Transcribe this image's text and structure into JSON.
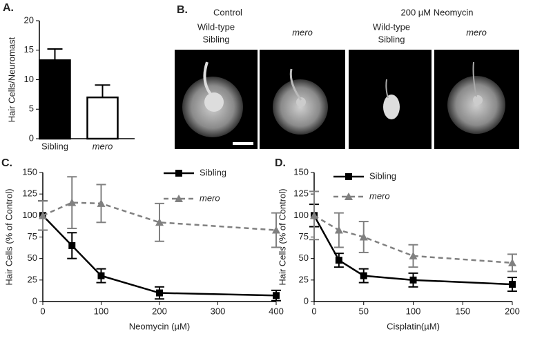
{
  "chart_data": [
    {
      "type": "bar",
      "panel": "A.",
      "ylabel": "Hair Cells/Neuromast",
      "categories": [
        "Sibling",
        "mero"
      ],
      "values": [
        13.3,
        7.0
      ],
      "errors": [
        1.9,
        2.1
      ],
      "colors": [
        "#000000",
        "#ffffff"
      ],
      "ylim": [
        0,
        20
      ],
      "yticks": [
        0,
        5,
        10,
        15,
        20
      ]
    },
    {
      "type": "line",
      "panel": "C.",
      "xlabel": "Neomycin (µM)",
      "ylabel": "Hair Cells (% of Control)",
      "x": [
        0,
        50,
        100,
        200,
        400
      ],
      "xlim": [
        0,
        400
      ],
      "xticks": [
        0,
        100,
        200,
        300,
        400
      ],
      "ylim": [
        0,
        150
      ],
      "yticks": [
        0,
        25,
        50,
        75,
        100,
        125,
        150
      ],
      "series": [
        {
          "name": "Sibling",
          "color": "#000000",
          "marker": "square",
          "line_style": "solid",
          "values": [
            100,
            65,
            30,
            10,
            7
          ],
          "errors": [
            17,
            15,
            8,
            7,
            6
          ]
        },
        {
          "name": "mero",
          "color": "#808080",
          "marker": "triangle",
          "line_style": "dashed",
          "values": [
            100,
            115,
            114,
            92,
            83
          ],
          "errors": [
            17,
            30,
            22,
            22,
            20
          ]
        }
      ]
    },
    {
      "type": "line",
      "panel": "D.",
      "xlabel": "Cisplatin(µM)",
      "ylabel": "Hair Cells (% of Control)",
      "x": [
        0,
        25,
        50,
        100,
        200
      ],
      "xlim": [
        0,
        200
      ],
      "xticks": [
        0,
        50,
        100,
        150,
        200
      ],
      "ylim": [
        0,
        150
      ],
      "yticks": [
        0,
        25,
        50,
        75,
        100,
        125,
        150
      ],
      "series": [
        {
          "name": "Sibling",
          "color": "#000000",
          "marker": "square",
          "line_style": "solid",
          "values": [
            100,
            48,
            30,
            25,
            20
          ],
          "errors": [
            13,
            8,
            8,
            8,
            8
          ]
        },
        {
          "name": "mero",
          "color": "#808080",
          "marker": "triangle",
          "line_style": "dashed",
          "values": [
            100,
            83,
            75,
            53,
            45
          ],
          "errors": [
            28,
            20,
            18,
            13,
            10
          ]
        }
      ]
    }
  ],
  "panel_b": {
    "label": "B.",
    "groups": [
      {
        "title": "Control",
        "columns": [
          [
            "Wild-type",
            "Sibling"
          ],
          [
            "mero"
          ]
        ]
      },
      {
        "title": "200 µM Neomycin",
        "columns": [
          [
            "Wild-type",
            "Sibling"
          ],
          [
            "mero"
          ]
        ]
      }
    ]
  }
}
